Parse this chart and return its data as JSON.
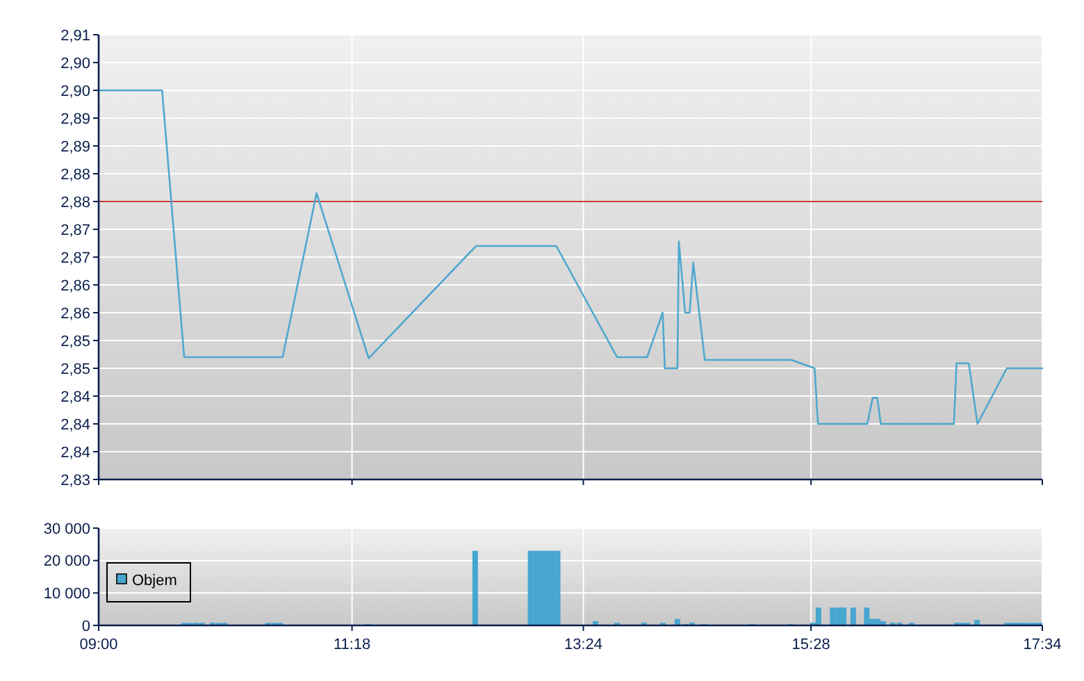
{
  "chart_data": [
    {
      "type": "line",
      "xlim": [
        9,
        17.5667
      ],
      "xticks": [
        {
          "value": 9,
          "label": null
        },
        {
          "value": 11.3,
          "label": null
        },
        {
          "value": 13.4,
          "label": null
        },
        {
          "value": 15.4667,
          "label": null
        },
        {
          "value": 17.5667,
          "label": null
        }
      ],
      "ylim": [
        2.83,
        2.91
      ],
      "yticks": [
        {
          "value": 2.83,
          "label": "2,83"
        },
        {
          "value": 2.835,
          "label": "2,84"
        },
        {
          "value": 2.84,
          "label": "2,84"
        },
        {
          "value": 2.845,
          "label": "2,84"
        },
        {
          "value": 2.85,
          "label": "2,85"
        },
        {
          "value": 2.855,
          "label": "2,85"
        },
        {
          "value": 2.86,
          "label": "2,86"
        },
        {
          "value": 2.865,
          "label": "2,86"
        },
        {
          "value": 2.87,
          "label": "2,87"
        },
        {
          "value": 2.875,
          "label": "2,87"
        },
        {
          "value": 2.88,
          "label": "2,88"
        },
        {
          "value": 2.885,
          "label": "2,88"
        },
        {
          "value": 2.89,
          "label": "2,89"
        },
        {
          "value": 2.895,
          "label": "2,89"
        },
        {
          "value": 2.9,
          "label": "2,90"
        },
        {
          "value": 2.905,
          "label": "2,90"
        },
        {
          "value": 2.91,
          "label": "2,91"
        }
      ],
      "tick_labels": "y",
      "grid": true,
      "ref_lines": [
        {
          "axis": "y",
          "value": 2.88,
          "color": "#c83c3c"
        }
      ],
      "series": [
        {
          "color": "#4fa8cf",
          "x": [
            9,
            9.576,
            9.776,
            10.67,
            10.978,
            11.451,
            12.426,
            13.155,
            13.706,
            13.979,
            14.12,
            14.14,
            14.254,
            14.267,
            14.324,
            14.365,
            14.398,
            14.503,
            15.29,
            15.5,
            15.53,
            15.978,
            16.027,
            16.068,
            16.101,
            16.764,
            16.788,
            16.899,
            16.978,
            17.245,
            17.5667
          ],
          "values": [
            2.9,
            2.9,
            2.852,
            2.852,
            2.8815,
            2.8518,
            2.872,
            2.872,
            2.852,
            2.852,
            2.86,
            2.85,
            2.85,
            2.8728,
            2.86,
            2.86,
            2.869,
            2.8515,
            2.8515,
            2.85,
            2.84,
            2.84,
            2.8447,
            2.8447,
            2.84,
            2.84,
            2.8509,
            2.8509,
            2.84,
            2.85,
            2.85
          ]
        }
      ]
    },
    {
      "type": "bar",
      "xlim": [
        9,
        17.5667
      ],
      "xticks": [
        {
          "value": 9,
          "label": "09:00"
        },
        {
          "value": 11.3,
          "label": "11:18"
        },
        {
          "value": 13.4,
          "label": "13:24"
        },
        {
          "value": 15.4667,
          "label": "15:28"
        },
        {
          "value": 17.5667,
          "label": "17:34"
        }
      ],
      "ylim": [
        0,
        30000
      ],
      "yticks": [
        {
          "value": 0,
          "label": "0"
        },
        {
          "value": 10000,
          "label": "10 000"
        },
        {
          "value": 20000,
          "label": "20 000"
        },
        {
          "value": 30000,
          "label": "30 000"
        }
      ],
      "grid": true,
      "legend": "left",
      "series": [
        {
          "name": "Objem",
          "color": "#46a6d0",
          "x": [
            9.776,
            9.83,
            9.885,
            9.939,
            10.034,
            10.089,
            10.143,
            10.538,
            10.592,
            10.647,
            11.447,
            12.418,
            12.921,
            12.97,
            13.019,
            13.068,
            13.118,
            13.167,
            13.51,
            13.706,
            13.95,
            14.122,
            14.254,
            14.327,
            14.388,
            14.498,
            14.929,
            15.284,
            15.485,
            15.535,
            15.664,
            15.714,
            15.763,
            15.85,
            15.973,
            16.023,
            16.072,
            16.121,
            16.209,
            16.27,
            16.381,
            16.789,
            16.838,
            16.888,
            16.974,
            17.246,
            17.295,
            17.345,
            17.394,
            17.444,
            17.493,
            17.543
          ],
          "values": [
            800,
            800,
            800,
            800,
            800,
            800,
            800,
            800,
            800,
            800,
            400,
            23000,
            23000,
            23000,
            23000,
            23000,
            23000,
            23000,
            1300,
            800,
            800,
            800,
            2000,
            400,
            800,
            400,
            400,
            400,
            800,
            5500,
            5500,
            5500,
            5500,
            5500,
            5500,
            2000,
            2000,
            1300,
            800,
            800,
            800,
            800,
            800,
            800,
            1700,
            800,
            800,
            800,
            800,
            800,
            800,
            800
          ]
        }
      ]
    }
  ]
}
